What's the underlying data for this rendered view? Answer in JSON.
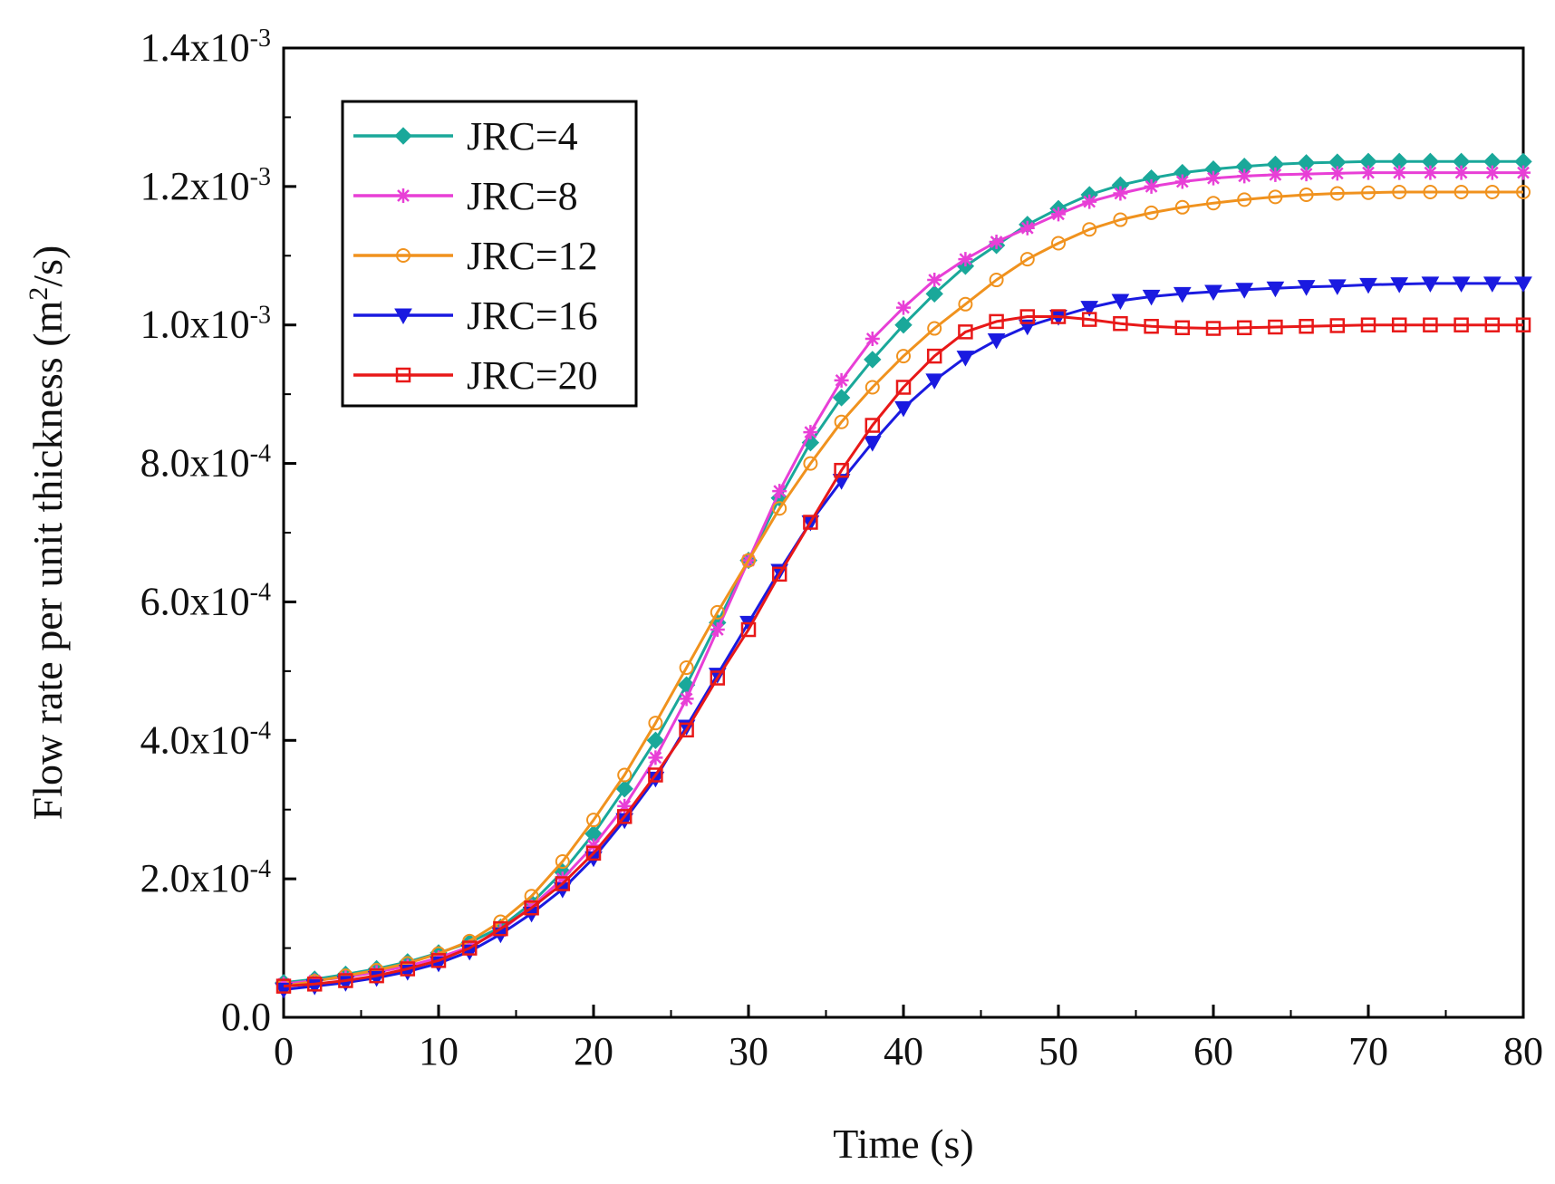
{
  "chart_data": {
    "type": "line",
    "title": "",
    "xlabel": "Time (s)",
    "ylabel": "Flow rate per unit thickness",
    "ylabel_units": {
      "open": " (m",
      "sup": "2",
      "close": "/s)"
    },
    "xlim": [
      0,
      80
    ],
    "ylim": [
      0,
      0.0014
    ],
    "x_ticks": [
      0,
      10,
      20,
      30,
      40,
      50,
      60,
      70,
      80
    ],
    "x_tick_labels": [
      "0",
      "10",
      "20",
      "30",
      "40",
      "50",
      "60",
      "70",
      "80"
    ],
    "y_ticks": [
      0,
      0.0002,
      0.0004,
      0.0006,
      0.0008,
      0.001,
      0.0012,
      0.0014
    ],
    "y_tick_labels": [
      {
        "base": "0.0",
        "exp": ""
      },
      {
        "base": "2.0x10",
        "exp": "-4"
      },
      {
        "base": "4.0x10",
        "exp": "-4"
      },
      {
        "base": "6.0x10",
        "exp": "-4"
      },
      {
        "base": "8.0x10",
        "exp": "-4"
      },
      {
        "base": "1.0x10",
        "exp": "-3"
      },
      {
        "base": "1.2x10",
        "exp": "-3"
      },
      {
        "base": "1.4x10",
        "exp": "-3"
      }
    ],
    "grid": false,
    "legend_position": "top-left",
    "x": [
      0,
      2,
      4,
      6,
      8,
      10,
      12,
      14,
      16,
      18,
      20,
      22,
      24,
      26,
      28,
      30,
      32,
      34,
      36,
      38,
      40,
      42,
      44,
      46,
      48,
      50,
      52,
      54,
      56,
      58,
      60,
      62,
      64,
      66,
      68,
      70,
      72,
      74,
      76,
      78,
      80
    ],
    "series": [
      {
        "name": "JRC=4",
        "color": "#1aa89a",
        "marker": "diamond",
        "values": [
          5e-05,
          5.5e-05,
          6.2e-05,
          7e-05,
          8e-05,
          9.3e-05,
          0.000108,
          0.00013,
          0.000165,
          0.00021,
          0.000265,
          0.00033,
          0.0004,
          0.00048,
          0.00057,
          0.00066,
          0.00075,
          0.00083,
          0.000895,
          0.00095,
          0.001,
          0.001045,
          0.001085,
          0.001115,
          0.001145,
          0.001168,
          0.001188,
          0.001202,
          0.001212,
          0.00122,
          0.001225,
          0.001229,
          0.001232,
          0.001234,
          0.001235,
          0.001236,
          0.001236,
          0.001236,
          0.001236,
          0.001236,
          0.001236
        ]
      },
      {
        "name": "JRC=8",
        "color": "#e83fd6",
        "marker": "star",
        "values": [
          4.8e-05,
          5.3e-05,
          5.8e-05,
          6.5e-05,
          7.4e-05,
          8.6e-05,
          0.000102,
          0.000125,
          0.00016,
          0.0002,
          0.000248,
          0.000305,
          0.000375,
          0.00046,
          0.00056,
          0.00066,
          0.00076,
          0.000845,
          0.00092,
          0.00098,
          0.001025,
          0.001065,
          0.001095,
          0.00112,
          0.00114,
          0.00116,
          0.001178,
          0.00119,
          0.0012,
          0.001207,
          0.001212,
          0.001215,
          0.001217,
          0.001218,
          0.001219,
          0.00122,
          0.00122,
          0.00122,
          0.00122,
          0.00122,
          0.00122
        ]
      },
      {
        "name": "JRC=12",
        "color": "#f0921e",
        "marker": "circle-open",
        "values": [
          4.5e-05,
          5.2e-05,
          6e-05,
          6.8e-05,
          7.8e-05,
          9.2e-05,
          0.00011,
          0.000138,
          0.000175,
          0.000225,
          0.000285,
          0.00035,
          0.000425,
          0.000505,
          0.000585,
          0.00066,
          0.000735,
          0.0008,
          0.00086,
          0.00091,
          0.000955,
          0.000995,
          0.00103,
          0.001065,
          0.001095,
          0.001118,
          0.001138,
          0.001152,
          0.001162,
          0.00117,
          0.001176,
          0.001181,
          0.001185,
          0.001188,
          0.00119,
          0.001191,
          0.001192,
          0.001192,
          0.001192,
          0.001192,
          0.001192
        ]
      },
      {
        "name": "JRC=16",
        "color": "#1a1ae0",
        "marker": "triangle-down",
        "values": [
          4e-05,
          4.5e-05,
          5e-05,
          5.7e-05,
          6.6e-05,
          7.8e-05,
          9.5e-05,
          0.00012,
          0.00015,
          0.000185,
          0.00023,
          0.000285,
          0.000345,
          0.00042,
          0.000495,
          0.00057,
          0.000645,
          0.000715,
          0.000775,
          0.00083,
          0.00088,
          0.00092,
          0.000953,
          0.000978,
          0.000998,
          0.001012,
          0.001025,
          0.001035,
          0.001041,
          0.001045,
          0.001048,
          0.001051,
          0.001053,
          0.001055,
          0.001056,
          0.001058,
          0.001059,
          0.00106,
          0.00106,
          0.00106,
          0.00106
        ]
      },
      {
        "name": "JRC=20",
        "color": "#e81818",
        "marker": "square-open",
        "values": [
          4.5e-05,
          4.8e-05,
          5.3e-05,
          6e-05,
          7e-05,
          8.2e-05,
          0.0001,
          0.000128,
          0.000158,
          0.000193,
          0.000237,
          0.00029,
          0.00035,
          0.000415,
          0.00049,
          0.00056,
          0.00064,
          0.000715,
          0.00079,
          0.000855,
          0.00091,
          0.000955,
          0.00099,
          0.001005,
          0.001012,
          0.001012,
          0.001008,
          0.001002,
          0.000998,
          0.000996,
          0.000995,
          0.000996,
          0.000997,
          0.000998,
          0.000999,
          0.001,
          0.001,
          0.001,
          0.001,
          0.001,
          0.001
        ]
      }
    ]
  }
}
